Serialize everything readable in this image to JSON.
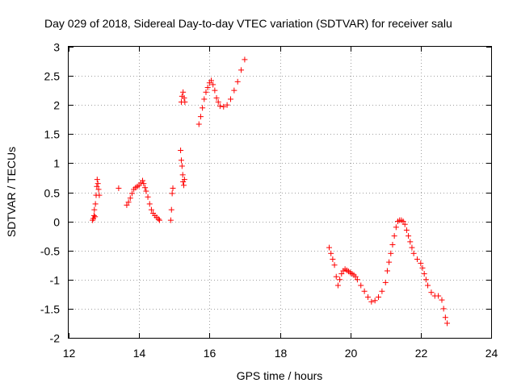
{
  "chart_data": {
    "type": "scatter",
    "title": "Day 029 of 2018, Sidereal Day-to-day VTEC variation (SDTVAR) for receiver salu",
    "xlabel": "GPS time / hours",
    "ylabel": "SDTVAR / TECUs",
    "xlim": [
      12,
      24
    ],
    "ylim": [
      -2,
      3
    ],
    "xticks": [
      "12",
      "14",
      "16",
      "18",
      "20",
      "22",
      "24"
    ],
    "yticks": [
      "3",
      "2.5",
      "2",
      "1.5",
      "1",
      "0.5",
      "0",
      "-0.5",
      "-1",
      "-1.5",
      "-2"
    ],
    "grid": true,
    "marker": "+",
    "color": "#ff0000",
    "series": [
      {
        "points": [
          [
            12.68,
            0.02
          ],
          [
            12.7,
            0.05
          ],
          [
            12.72,
            0.1
          ],
          [
            12.73,
            0.2
          ],
          [
            12.75,
            0.08
          ],
          [
            12.76,
            0.3
          ],
          [
            12.78,
            0.45
          ],
          [
            12.8,
            0.6
          ],
          [
            12.81,
            0.72
          ],
          [
            12.83,
            0.65
          ],
          [
            12.85,
            0.55
          ],
          [
            12.87,
            0.45
          ],
          [
            13.42,
            0.57
          ],
          [
            13.65,
            0.28
          ],
          [
            13.7,
            0.33
          ],
          [
            13.75,
            0.4
          ],
          [
            13.8,
            0.48
          ],
          [
            13.85,
            0.55
          ],
          [
            13.9,
            0.58
          ],
          [
            13.95,
            0.6
          ],
          [
            14.0,
            0.62
          ],
          [
            14.05,
            0.66
          ],
          [
            14.1,
            0.7
          ],
          [
            14.13,
            0.65
          ],
          [
            14.17,
            0.58
          ],
          [
            14.2,
            0.52
          ],
          [
            14.25,
            0.42
          ],
          [
            14.3,
            0.3
          ],
          [
            14.35,
            0.2
          ],
          [
            14.4,
            0.14
          ],
          [
            14.45,
            0.1
          ],
          [
            14.5,
            0.07
          ],
          [
            14.55,
            0.04
          ],
          [
            14.58,
            0.02
          ],
          [
            14.9,
            0.02
          ],
          [
            14.92,
            0.2
          ],
          [
            14.94,
            0.48
          ],
          [
            14.96,
            0.57
          ],
          [
            15.18,
            1.22
          ],
          [
            15.2,
            1.05
          ],
          [
            15.22,
            0.95
          ],
          [
            15.24,
            0.8
          ],
          [
            15.25,
            0.68
          ],
          [
            15.27,
            0.62
          ],
          [
            15.29,
            0.72
          ],
          [
            15.2,
            2.05
          ],
          [
            15.22,
            2.15
          ],
          [
            15.25,
            2.22
          ],
          [
            15.28,
            2.12
          ],
          [
            15.3,
            2.05
          ],
          [
            15.7,
            1.67
          ],
          [
            15.75,
            1.8
          ],
          [
            15.8,
            1.95
          ],
          [
            15.85,
            2.1
          ],
          [
            15.9,
            2.22
          ],
          [
            15.95,
            2.3
          ],
          [
            16.0,
            2.38
          ],
          [
            16.05,
            2.42
          ],
          [
            16.1,
            2.35
          ],
          [
            16.15,
            2.25
          ],
          [
            16.2,
            2.12
          ],
          [
            16.25,
            2.05
          ],
          [
            16.3,
            1.98
          ],
          [
            16.4,
            1.97
          ],
          [
            16.5,
            2.0
          ],
          [
            16.6,
            2.1
          ],
          [
            16.7,
            2.25
          ],
          [
            16.8,
            2.4
          ],
          [
            16.9,
            2.6
          ],
          [
            17.0,
            2.78
          ],
          [
            19.4,
            -0.45
          ],
          [
            19.45,
            -0.55
          ],
          [
            19.5,
            -0.65
          ],
          [
            19.55,
            -0.75
          ],
          [
            19.6,
            -0.95
          ],
          [
            19.65,
            -1.1
          ],
          [
            19.7,
            -1.0
          ],
          [
            19.75,
            -0.9
          ],
          [
            19.8,
            -0.85
          ],
          [
            19.85,
            -0.82
          ],
          [
            19.9,
            -0.84
          ],
          [
            19.95,
            -0.86
          ],
          [
            20.0,
            -0.88
          ],
          [
            20.05,
            -0.9
          ],
          [
            20.1,
            -0.92
          ],
          [
            20.15,
            -0.95
          ],
          [
            20.2,
            -1.0
          ],
          [
            20.3,
            -1.1
          ],
          [
            20.4,
            -1.2
          ],
          [
            20.5,
            -1.3
          ],
          [
            20.6,
            -1.38
          ],
          [
            20.7,
            -1.36
          ],
          [
            20.8,
            -1.3
          ],
          [
            20.9,
            -1.2
          ],
          [
            21.0,
            -1.05
          ],
          [
            21.05,
            -0.85
          ],
          [
            21.1,
            -0.7
          ],
          [
            21.15,
            -0.55
          ],
          [
            21.2,
            -0.4
          ],
          [
            21.25,
            -0.25
          ],
          [
            21.3,
            -0.1
          ],
          [
            21.35,
            0.0
          ],
          [
            21.4,
            0.02
          ],
          [
            21.45,
            0.02
          ],
          [
            21.5,
            0.0
          ],
          [
            21.55,
            -0.05
          ],
          [
            21.6,
            -0.15
          ],
          [
            21.65,
            -0.25
          ],
          [
            21.7,
            -0.35
          ],
          [
            21.75,
            -0.45
          ],
          [
            21.8,
            -0.55
          ],
          [
            21.9,
            -0.65
          ],
          [
            22.0,
            -0.72
          ],
          [
            22.05,
            -0.8
          ],
          [
            22.1,
            -0.9
          ],
          [
            22.15,
            -1.0
          ],
          [
            22.2,
            -1.1
          ],
          [
            22.3,
            -1.22
          ],
          [
            22.4,
            -1.28
          ],
          [
            22.5,
            -1.28
          ],
          [
            22.6,
            -1.35
          ],
          [
            22.65,
            -1.5
          ],
          [
            22.7,
            -1.65
          ],
          [
            22.75,
            -1.75
          ]
        ]
      }
    ]
  }
}
